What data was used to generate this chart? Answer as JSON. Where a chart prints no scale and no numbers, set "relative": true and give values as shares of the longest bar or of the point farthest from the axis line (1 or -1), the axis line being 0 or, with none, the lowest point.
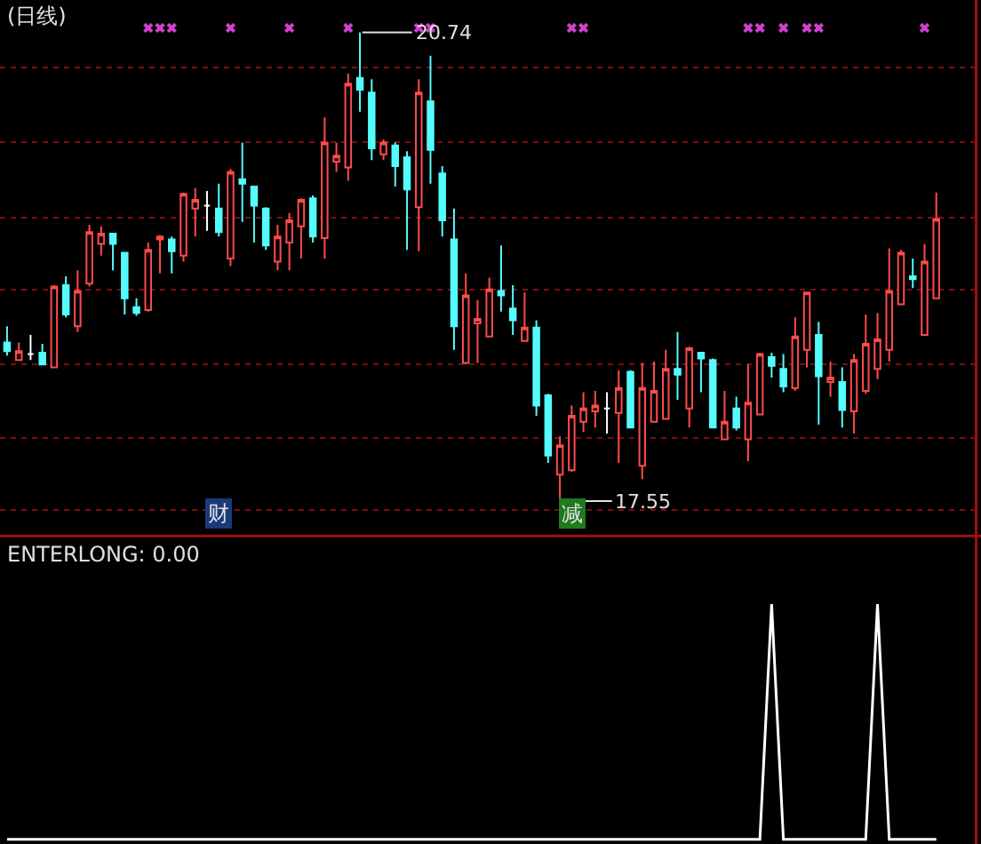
{
  "chart_data": [
    {
      "type": "candlestick",
      "title": "(日线)",
      "categories": [
        null,
        null,
        null,
        null,
        null,
        null,
        null,
        null,
        null,
        null,
        null,
        null,
        null,
        null,
        null,
        null,
        null,
        null,
        null,
        null,
        null,
        null,
        null,
        null,
        null,
        null,
        null,
        null,
        null,
        null,
        null,
        null,
        null,
        null,
        null,
        null,
        null,
        null,
        null,
        null,
        null,
        null,
        null,
        null,
        null,
        null,
        null,
        null,
        null,
        null,
        null,
        null,
        null,
        null,
        null,
        null,
        null,
        null,
        null,
        null,
        null,
        null,
        null,
        null,
        null,
        null,
        null,
        null,
        null,
        null,
        null,
        null,
        null,
        null,
        null,
        null,
        null,
        null,
        null,
        null
      ],
      "ohlc": [
        [
          18.63,
          18.74,
          18.54,
          18.57
        ],
        [
          18.51,
          18.63,
          18.51,
          18.57
        ],
        [
          18.55,
          18.68,
          18.51,
          18.55
        ],
        [
          18.56,
          18.62,
          18.48,
          18.48
        ],
        [
          18.46,
          19.02,
          18.46,
          19.01
        ],
        [
          19.02,
          19.08,
          18.8,
          18.82
        ],
        [
          18.74,
          19.12,
          18.7,
          18.98
        ],
        [
          19.03,
          19.43,
          19.01,
          19.38
        ],
        [
          19.3,
          19.42,
          19.22,
          19.37
        ],
        [
          19.37,
          19.37,
          19.12,
          19.3
        ],
        [
          19.24,
          19.24,
          18.82,
          18.93
        ],
        [
          18.87,
          18.93,
          18.81,
          18.83
        ],
        [
          18.85,
          19.31,
          18.84,
          19.26
        ],
        [
          19.33,
          19.36,
          19.1,
          19.35
        ],
        [
          19.33,
          19.35,
          19.1,
          19.25
        ],
        [
          19.22,
          19.65,
          19.18,
          19.64
        ],
        [
          19.54,
          19.68,
          19.35,
          19.6
        ],
        [
          19.56,
          19.66,
          19.39,
          19.56
        ],
        [
          19.54,
          19.71,
          19.35,
          19.38
        ],
        [
          19.2,
          19.81,
          19.15,
          19.79
        ],
        [
          19.74,
          19.99,
          19.45,
          19.71
        ],
        [
          19.69,
          19.69,
          19.31,
          19.56
        ],
        [
          19.54,
          19.55,
          19.26,
          19.29
        ],
        [
          19.18,
          19.43,
          19.12,
          19.35
        ],
        [
          19.31,
          19.51,
          19.12,
          19.46
        ],
        [
          19.42,
          19.61,
          19.2,
          19.6
        ],
        [
          19.61,
          19.63,
          19.31,
          19.35
        ],
        [
          19.34,
          20.16,
          19.2,
          19.99
        ],
        [
          19.86,
          19.99,
          19.79,
          19.9
        ],
        [
          19.82,
          20.46,
          19.73,
          20.39
        ],
        [
          20.43,
          20.74,
          20.2,
          20.35
        ],
        [
          20.33,
          20.42,
          19.87,
          19.95
        ],
        [
          19.91,
          20.01,
          19.87,
          19.99
        ],
        [
          19.97,
          19.99,
          19.69,
          19.83
        ],
        [
          19.89,
          19.93,
          19.26,
          19.67
        ],
        [
          19.55,
          20.42,
          19.25,
          20.33
        ],
        [
          20.27,
          20.58,
          19.71,
          19.94
        ],
        [
          19.78,
          19.83,
          19.35,
          19.46
        ],
        [
          19.33,
          19.54,
          18.58,
          18.74
        ],
        [
          18.49,
          19.1,
          18.48,
          18.95
        ],
        [
          18.76,
          18.92,
          18.49,
          18.79
        ],
        [
          18.67,
          19.07,
          18.67,
          18.99
        ],
        [
          18.98,
          19.29,
          18.84,
          18.95
        ],
        [
          18.86,
          19.02,
          18.68,
          18.78
        ],
        [
          18.64,
          18.97,
          18.64,
          18.73
        ],
        [
          18.73,
          18.78,
          18.13,
          18.2
        ],
        [
          18.27,
          18.28,
          17.81,
          17.86
        ],
        [
          17.73,
          17.99,
          17.55,
          17.93
        ],
        [
          17.76,
          18.2,
          17.75,
          18.13
        ],
        [
          18.09,
          18.29,
          18.02,
          18.18
        ],
        [
          18.16,
          18.3,
          18.05,
          18.2
        ],
        [
          18.18,
          18.29,
          18.01,
          18.18
        ],
        [
          18.15,
          18.44,
          17.81,
          18.32
        ],
        [
          18.43,
          18.44,
          18.05,
          18.05
        ],
        [
          17.79,
          18.49,
          17.7,
          18.32
        ],
        [
          18.09,
          18.5,
          18.09,
          18.3
        ],
        [
          18.11,
          18.58,
          18.11,
          18.45
        ],
        [
          18.45,
          18.7,
          18.24,
          18.41
        ],
        [
          18.18,
          18.6,
          18.05,
          18.59
        ],
        [
          18.56,
          18.56,
          18.29,
          18.52
        ],
        [
          18.51,
          18.52,
          18.05,
          18.05
        ],
        [
          17.97,
          18.3,
          17.97,
          18.09
        ],
        [
          18.18,
          18.26,
          18.03,
          18.05
        ],
        [
          17.97,
          18.48,
          17.82,
          18.22
        ],
        [
          18.14,
          18.56,
          18.14,
          18.55
        ],
        [
          18.53,
          18.56,
          18.39,
          18.47
        ],
        [
          18.45,
          18.55,
          18.29,
          18.33
        ],
        [
          18.32,
          18.8,
          18.3,
          18.67
        ],
        [
          18.58,
          18.97,
          18.46,
          18.97
        ],
        [
          18.68,
          18.77,
          18.07,
          18.4
        ],
        [
          18.36,
          18.5,
          18.26,
          18.39
        ],
        [
          18.36,
          18.46,
          18.05,
          18.17
        ],
        [
          18.16,
          18.55,
          18.01,
          18.51
        ],
        [
          18.3,
          18.82,
          18.28,
          18.62
        ],
        [
          18.45,
          18.83,
          18.38,
          18.65
        ],
        [
          18.58,
          19.27,
          18.5,
          18.98
        ],
        [
          18.89,
          19.26,
          18.89,
          19.24
        ],
        [
          19.08,
          19.2,
          19.0,
          19.06
        ],
        [
          18.68,
          19.3,
          18.68,
          19.18
        ],
        [
          18.93,
          19.65,
          18.93,
          19.47
        ]
      ],
      "colors": [
        "#54fcfc",
        "#ff4a4a",
        "#ffffff",
        "#54fcfc",
        "#ff4a4a",
        "#54fcfc",
        "#ff4a4a",
        "#ff4a4a",
        "#ff4a4a",
        "#54fcfc",
        "#54fcfc",
        "#54fcfc",
        "#ff4a4a",
        "#ff4a4a",
        "#54fcfc",
        "#ff4a4a",
        "#ff4a4a",
        "#ffffff",
        "#54fcfc",
        "#ff4a4a",
        "#54fcfc",
        "#54fcfc",
        "#54fcfc",
        "#ff4a4a",
        "#ff4a4a",
        "#ff4a4a",
        "#54fcfc",
        "#ff4a4a",
        "#ff4a4a",
        "#ff4a4a",
        "#54fcfc",
        "#54fcfc",
        "#ff4a4a",
        "#54fcfc",
        "#54fcfc",
        "#ff4a4a",
        "#54fcfc",
        "#54fcfc",
        "#54fcfc",
        "#ff4a4a",
        "#ff4a4a",
        "#ff4a4a",
        "#54fcfc",
        "#54fcfc",
        "#ff4a4a",
        "#54fcfc",
        "#54fcfc",
        "#ff4a4a",
        "#ff4a4a",
        "#ff4a4a",
        "#ff4a4a",
        "#ffffff",
        "#ff4a4a",
        "#54fcfc",
        "#ff4a4a",
        "#ff4a4a",
        "#ff4a4a",
        "#54fcfc",
        "#ff4a4a",
        "#54fcfc",
        "#54fcfc",
        "#ff4a4a",
        "#54fcfc",
        "#ff4a4a",
        "#ff4a4a",
        "#54fcfc",
        "#54fcfc",
        "#ff4a4a",
        "#ff4a4a",
        "#54fcfc",
        "#ff4a4a",
        "#54fcfc",
        "#ff4a4a",
        "#ff4a4a",
        "#ff4a4a",
        "#ff4a4a",
        "#ff4a4a",
        "#54fcfc",
        "#ff4a4a",
        "#ff4a4a"
      ],
      "series": [
        {
          "type": "scatter",
          "marker": "cross",
          "color": "#d040d0",
          "values": [
            null,
            null,
            null,
            null,
            null,
            null,
            null,
            null,
            null,
            null,
            null,
            null,
            20.77,
            20.77,
            20.77,
            null,
            null,
            null,
            null,
            20.77,
            null,
            null,
            null,
            null,
            20.77,
            null,
            null,
            null,
            null,
            20.77,
            null,
            null,
            null,
            null,
            null,
            20.77,
            20.77,
            null,
            null,
            null,
            null,
            null,
            null,
            null,
            null,
            null,
            null,
            null,
            20.77,
            20.77,
            null,
            null,
            null,
            null,
            null,
            null,
            null,
            null,
            null,
            null,
            null,
            null,
            null,
            20.77,
            20.77,
            null,
            20.77,
            null,
            20.77,
            20.77,
            null,
            null,
            null,
            null,
            null,
            null,
            null,
            null,
            20.77,
            null
          ]
        }
      ],
      "ylim": [
        17.33,
        20.96
      ],
      "yticks": [
        {
          "value": 20.5,
          "label": null
        },
        {
          "value": 19.99,
          "label": null
        },
        {
          "value": 19.48,
          "label": null
        },
        {
          "value": 18.99,
          "label": null
        },
        {
          "value": 18.48,
          "label": null
        },
        {
          "value": 17.98,
          "label": null
        },
        {
          "value": 17.49,
          "label": null
        }
      ],
      "grid": "y",
      "annotations": [
        {
          "text": "20.74",
          "y": 20.74
        },
        "17.55",
        "财",
        "减"
      ]
    },
    {
      "type": "line",
      "title": "ENTERLONG: 0.00",
      "relative": true,
      "categories": [
        null,
        null,
        null,
        null,
        null,
        null,
        null,
        null,
        null,
        null,
        null,
        null,
        null,
        null,
        null,
        null,
        null,
        null,
        null,
        null,
        null,
        null,
        null,
        null,
        null,
        null,
        null,
        null,
        null,
        null,
        null,
        null,
        null,
        null,
        null,
        null,
        null,
        null,
        null,
        null,
        null,
        null,
        null,
        null,
        null,
        null,
        null,
        null,
        null,
        null,
        null,
        null,
        null,
        null,
        null,
        null,
        null,
        null,
        null,
        null,
        null,
        null,
        null,
        null,
        null,
        null,
        null,
        null,
        null,
        null,
        null,
        null,
        null,
        null,
        null,
        null,
        null,
        null,
        null,
        null
      ],
      "series": [
        {
          "color": "#ffffff",
          "values": [
            0,
            0,
            0,
            0,
            0,
            0,
            0,
            0,
            0,
            0,
            0,
            0,
            0,
            0,
            0,
            0,
            0,
            0,
            0,
            0,
            0,
            0,
            0,
            0,
            0,
            0,
            0,
            0,
            0,
            0,
            0,
            0,
            0,
            0,
            0,
            0,
            0,
            0,
            0,
            0,
            0,
            0,
            0,
            0,
            0,
            0,
            0,
            0,
            0,
            0,
            0,
            0,
            0,
            0,
            0,
            0,
            0,
            0,
            0,
            0,
            0,
            0,
            0,
            0,
            0,
            1,
            0,
            0,
            0,
            0,
            0,
            0,
            0,
            0,
            1,
            0,
            0,
            0,
            0,
            0
          ]
        }
      ]
    }
  ]
}
